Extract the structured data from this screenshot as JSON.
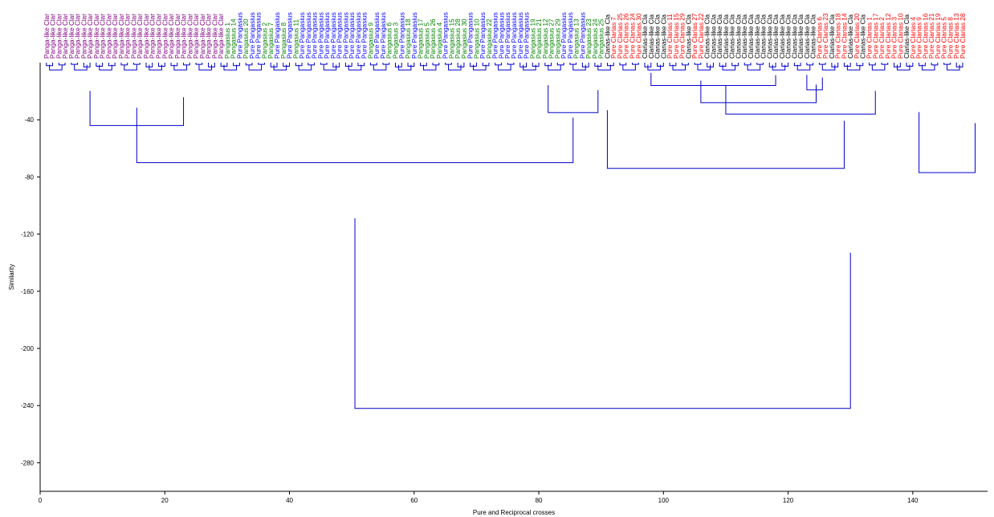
{
  "chart_data": {
    "type": "dendrogram",
    "xlabel": "Pure and Reciprocal crosses",
    "ylabel": "Similarity",
    "xlim": [
      0,
      152
    ],
    "ylim": [
      -300,
      0
    ],
    "x_ticks": [
      0,
      20,
      40,
      60,
      80,
      100,
      120,
      140
    ],
    "y_ticks": [
      -40,
      -80,
      -120,
      -160,
      -200,
      -240,
      -280
    ],
    "grid": false,
    "colors": {
      "dendrogram": "#0000cc",
      "panga_like": "#800080",
      "pangasius_cross": "#008000",
      "pure_pangasius": "#0000ff",
      "clarias_like": "#000000",
      "pure_clarias": "#ff0000"
    },
    "leaves": [
      {
        "label": "Panga-like Clar",
        "group": "panga_like"
      },
      {
        "label": "Panga-like Clar",
        "group": "panga_like"
      },
      {
        "label": "Panga-like Clar",
        "group": "panga_like"
      },
      {
        "label": "Panga-like Clar",
        "group": "panga_like"
      },
      {
        "label": "Panga-like Clar",
        "group": "panga_like"
      },
      {
        "label": "Panga-like Clar",
        "group": "panga_like"
      },
      {
        "label": "Panga-like Clar",
        "group": "panga_like"
      },
      {
        "label": "Panga-like Clar",
        "group": "panga_like"
      },
      {
        "label": "Panga-like Clar",
        "group": "panga_like"
      },
      {
        "label": "Panga-like Clar",
        "group": "panga_like"
      },
      {
        "label": "Panga-like Clar",
        "group": "panga_like"
      },
      {
        "label": "Panga-like Clar",
        "group": "panga_like"
      },
      {
        "label": "Panga-like Clar",
        "group": "panga_like"
      },
      {
        "label": "Panga-like Clar",
        "group": "panga_like"
      },
      {
        "label": "Panga-like Clar",
        "group": "panga_like"
      },
      {
        "label": "Panga-like Clar",
        "group": "panga_like"
      },
      {
        "label": "Panga-like Clar",
        "group": "panga_like"
      },
      {
        "label": "Panga-like Clar",
        "group": "panga_like"
      },
      {
        "label": "Panga-like Clar",
        "group": "panga_like"
      },
      {
        "label": "Panga-like Clar",
        "group": "panga_like"
      },
      {
        "label": "Panga-like Clar",
        "group": "panga_like"
      },
      {
        "label": "Panga-like Clar",
        "group": "panga_like"
      },
      {
        "label": "Panga-like Clar",
        "group": "panga_like"
      },
      {
        "label": "Panga-like Clar",
        "group": "panga_like"
      },
      {
        "label": "Panga-like Clar",
        "group": "panga_like"
      },
      {
        "label": "Panga-like Clar",
        "group": "panga_like"
      },
      {
        "label": "Panga-like Clar",
        "group": "panga_like"
      },
      {
        "label": "Panga-like Clar",
        "group": "panga_like"
      },
      {
        "label": "Panga-like Clar",
        "group": "panga_like"
      },
      {
        "label": "Pangasius 1",
        "group": "pangasius_cross"
      },
      {
        "label": "Pangasius 14",
        "group": "pangasius_cross"
      },
      {
        "label": "Pure Pangasius",
        "group": "pure_pangasius"
      },
      {
        "label": "Pangasius 20",
        "group": "pangasius_cross"
      },
      {
        "label": "Pure Pangasius",
        "group": "pure_pangasius"
      },
      {
        "label": "Pure Pangasius",
        "group": "pure_pangasius"
      },
      {
        "label": "Pangasius 2",
        "group": "pangasius_cross"
      },
      {
        "label": "Pangasius 7",
        "group": "pangasius_cross"
      },
      {
        "label": "Pure Pangasius",
        "group": "pure_pangasius"
      },
      {
        "label": "Pangasius 8",
        "group": "pangasius_cross"
      },
      {
        "label": "Pure Pangasius",
        "group": "pure_pangasius"
      },
      {
        "label": "Pangasius 11",
        "group": "pangasius_cross"
      },
      {
        "label": "Pure Pangasius",
        "group": "pure_pangasius"
      },
      {
        "label": "Pure Pangasius",
        "group": "pure_pangasius"
      },
      {
        "label": "Pure Pangasius",
        "group": "pure_pangasius"
      },
      {
        "label": "Pure Pangasius",
        "group": "pure_pangasius"
      },
      {
        "label": "Pure Pangasius",
        "group": "pure_pangasius"
      },
      {
        "label": "Pure Pangasius",
        "group": "pure_pangasius"
      },
      {
        "label": "Pure Pangasius",
        "group": "pure_pangasius"
      },
      {
        "label": "Pure Pangasius",
        "group": "pure_pangasius"
      },
      {
        "label": "Pure Pangasius",
        "group": "pure_pangasius"
      },
      {
        "label": "Pure Pangasius",
        "group": "pure_pangasius"
      },
      {
        "label": "Pure Pangasius",
        "group": "pure_pangasius"
      },
      {
        "label": "Pangasius 9",
        "group": "pangasius_cross"
      },
      {
        "label": "Pure Pangasius",
        "group": "pure_pangasius"
      },
      {
        "label": "Pure Pangasius",
        "group": "pure_pangasius"
      },
      {
        "label": "Pangasius 6",
        "group": "pangasius_cross"
      },
      {
        "label": "Pangasius 3",
        "group": "pangasius_cross"
      },
      {
        "label": "Pure Pangasius",
        "group": "pure_pangasius"
      },
      {
        "label": "Pangasius 18",
        "group": "pangasius_cross"
      },
      {
        "label": "Pure Pangasius",
        "group": "pure_pangasius"
      },
      {
        "label": "Pangasius 17",
        "group": "pangasius_cross"
      },
      {
        "label": "Pangasius 5",
        "group": "pangasius_cross"
      },
      {
        "label": "Pangasius 26",
        "group": "pangasius_cross"
      },
      {
        "label": "Pangasius 4",
        "group": "pangasius_cross"
      },
      {
        "label": "Pure Pangasius",
        "group": "pure_pangasius"
      },
      {
        "label": "Pangasius 15",
        "group": "pangasius_cross"
      },
      {
        "label": "Pangasius 28",
        "group": "pangasius_cross"
      },
      {
        "label": "Pangasius 30",
        "group": "pangasius_cross"
      },
      {
        "label": "Pure Pangasius",
        "group": "pure_pangasius"
      },
      {
        "label": "Pangasius 10",
        "group": "pangasius_cross"
      },
      {
        "label": "Pure Pangasius",
        "group": "pure_pangasius"
      },
      {
        "label": "Pangasius 22",
        "group": "pangasius_cross"
      },
      {
        "label": "Pure Pangasius",
        "group": "pure_pangasius"
      },
      {
        "label": "Pure Pangasius",
        "group": "pure_pangasius"
      },
      {
        "label": "Pure Pangasius",
        "group": "pure_pangasius"
      },
      {
        "label": "Pure Pangasius",
        "group": "pure_pangasius"
      },
      {
        "label": "Pure Pangasius",
        "group": "pure_pangasius"
      },
      {
        "label": "Pure Pangasius",
        "group": "pure_pangasius"
      },
      {
        "label": "Pangasius 19",
        "group": "pangasius_cross"
      },
      {
        "label": "Pangasius 21",
        "group": "pangasius_cross"
      },
      {
        "label": "Pangasius 12",
        "group": "pangasius_cross"
      },
      {
        "label": "Pangasius 27",
        "group": "pangasius_cross"
      },
      {
        "label": "Pangasius 29",
        "group": "pangasius_cross"
      },
      {
        "label": "Pure Pangasius",
        "group": "pure_pangasius"
      },
      {
        "label": "Pure Pangasius",
        "group": "pure_pangasius"
      },
      {
        "label": "Pangasius 13",
        "group": "pangasius_cross"
      },
      {
        "label": "Pure Pangasius",
        "group": "pure_pangasius"
      },
      {
        "label": "Pangasius 23",
        "group": "pangasius_cross"
      },
      {
        "label": "Pangasius 24",
        "group": "pangasius_cross"
      },
      {
        "label": "Pangasius 25",
        "group": "pangasius_cross"
      },
      {
        "label": "Clarias-like Cla",
        "group": "clarias_like"
      },
      {
        "label": "Pure Clarias 7",
        "group": "pure_clarias"
      },
      {
        "label": "Pure Clarias 25",
        "group": "pure_clarias"
      },
      {
        "label": "Pure Clarias 26",
        "group": "pure_clarias"
      },
      {
        "label": "Pure Clarias 24",
        "group": "pure_clarias"
      },
      {
        "label": "Pure Clarias 30",
        "group": "pure_clarias"
      },
      {
        "label": "Clarias-like Cla",
        "group": "clarias_like"
      },
      {
        "label": "Clarias-like Cla",
        "group": "clarias_like"
      },
      {
        "label": "Clarias-like Cla",
        "group": "clarias_like"
      },
      {
        "label": "Clarias-like Cla",
        "group": "clarias_like"
      },
      {
        "label": "Pure Clarias 11",
        "group": "pure_clarias"
      },
      {
        "label": "Pure Clarias 15",
        "group": "pure_clarias"
      },
      {
        "label": "Pure Clarias 29",
        "group": "pure_clarias"
      },
      {
        "label": "Clarias-like Cla",
        "group": "clarias_like"
      },
      {
        "label": "Pure Clarias 27",
        "group": "pure_clarias"
      },
      {
        "label": "Pure Clarias 22",
        "group": "pure_clarias"
      },
      {
        "label": "Clarias-like Cla",
        "group": "clarias_like"
      },
      {
        "label": "Clarias-like Cla",
        "group": "clarias_like"
      },
      {
        "label": "Clarias-like Cla",
        "group": "clarias_like"
      },
      {
        "label": "Clarias-like Cla",
        "group": "clarias_like"
      },
      {
        "label": "Clarias-like Cla",
        "group": "clarias_like"
      },
      {
        "label": "Clarias-like Cla",
        "group": "clarias_like"
      },
      {
        "label": "Clarias-like Cla",
        "group": "clarias_like"
      },
      {
        "label": "Clarias-like Cla",
        "group": "clarias_like"
      },
      {
        "label": "Clarias-like Cla",
        "group": "clarias_like"
      },
      {
        "label": "Clarias-like Cla",
        "group": "clarias_like"
      },
      {
        "label": "Clarias-like Cla",
        "group": "clarias_like"
      },
      {
        "label": "Clarias-like Cla",
        "group": "clarias_like"
      },
      {
        "label": "Clarias-like Cla",
        "group": "clarias_like"
      },
      {
        "label": "Clarias-like Cla",
        "group": "clarias_like"
      },
      {
        "label": "Clarias-like Cla",
        "group": "clarias_like"
      },
      {
        "label": "Clarias-like Cla",
        "group": "clarias_like"
      },
      {
        "label": "Clarias-like Cla",
        "group": "clarias_like"
      },
      {
        "label": "Clarias-like Cla",
        "group": "clarias_like"
      },
      {
        "label": "Pure Clarias 6",
        "group": "pure_clarias"
      },
      {
        "label": "Pure Clarias 23",
        "group": "pure_clarias"
      },
      {
        "label": "Clarias-like Cla",
        "group": "clarias_like"
      },
      {
        "label": "Pure Clarias 18",
        "group": "pure_clarias"
      },
      {
        "label": "Pure Clarias 14",
        "group": "pure_clarias"
      },
      {
        "label": "Clarias-like Cla",
        "group": "clarias_like"
      },
      {
        "label": "Pure Clarias 20",
        "group": "pure_clarias"
      },
      {
        "label": "Clarias-like Cla",
        "group": "clarias_like"
      },
      {
        "label": "Pure Clarias 1",
        "group": "pure_clarias"
      },
      {
        "label": "Pure Clarias 17",
        "group": "pure_clarias"
      },
      {
        "label": "Pure Clarias 2",
        "group": "pure_clarias"
      },
      {
        "label": "Pure Clarias 12",
        "group": "pure_clarias"
      },
      {
        "label": "Pure Clarias 3",
        "group": "pure_clarias"
      },
      {
        "label": "Pure Clarias 10",
        "group": "pure_clarias"
      },
      {
        "label": "Clarias-like Cla",
        "group": "clarias_like"
      },
      {
        "label": "Pure Clarias 4",
        "group": "pure_clarias"
      },
      {
        "label": "Pure Clarias 9",
        "group": "pure_clarias"
      },
      {
        "label": "Pure Clarias 16",
        "group": "pure_clarias"
      },
      {
        "label": "Pure Clarias 21",
        "group": "pure_clarias"
      },
      {
        "label": "Pure Clarias 19",
        "group": "pure_clarias"
      },
      {
        "label": "Pure Clarias 5",
        "group": "pure_clarias"
      },
      {
        "label": "Pure Clarias 8",
        "group": "pure_clarias"
      },
      {
        "label": "Pure Clarias 13",
        "group": "pure_clarias"
      },
      {
        "label": "Pure Clarias 28",
        "group": "pure_clarias"
      }
    ],
    "merges": [
      {
        "x1": 8,
        "x2": 23,
        "y": -44
      },
      {
        "x1": 15.5,
        "x2": 85.5,
        "y": -70
      },
      {
        "x1": 81.5,
        "x2": 89.5,
        "y": -35
      },
      {
        "x1": 91,
        "x2": 129,
        "y": -74
      },
      {
        "x1": 110,
        "x2": 134,
        "y": -36
      },
      {
        "x1": 106,
        "x2": 124.5,
        "y": -28
      },
      {
        "x1": 98,
        "x2": 118,
        "y": -16
      },
      {
        "x1": 123,
        "x2": 125.5,
        "y": -19
      },
      {
        "x1": 141,
        "x2": 150,
        "y": -77
      },
      {
        "x1": 50.5,
        "x2": 130,
        "y": -242
      }
    ]
  }
}
